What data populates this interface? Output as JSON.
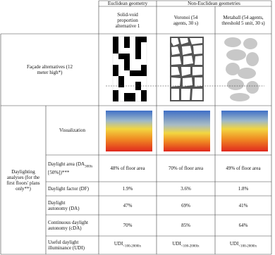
{
  "header": {
    "group_euclidean": "Euclidean geometry",
    "group_non_euclidean": "Non-Euclidean geometries",
    "alternatives": [
      "Solid-void proportion alternative 1",
      "Voronoi (54 agents, 30 s)",
      "Metaball (54 agents, threshold 5 unit, 30 s)"
    ]
  },
  "facade_label": "Façade alternatives (12 meter high*)",
  "section_label": "Daylighting analyses (for the first floors' plans only**)",
  "visualization_label": "Visualization",
  "rows": [
    {
      "label": "Daylight area (DA",
      "label_sub": "300lx",
      "label_tail": " [50%])***",
      "values": [
        "48% of floor area",
        "70% of floor area",
        "49% of floor area"
      ]
    },
    {
      "label": "Daylight factor (DF)",
      "values": [
        "1.9%",
        "3.6%",
        "1.8%"
      ]
    },
    {
      "label": "Daylight autonomy (DA)",
      "values": [
        "47%",
        "69%",
        "41%"
      ]
    },
    {
      "label": "Continuous daylight autonomy (cDA)",
      "values": [
        "70%",
        "85%",
        "64%"
      ]
    },
    {
      "label": "Useful daylight illuminance (UDI)",
      "values": [
        "UDI",
        "UDI",
        "UDI"
      ],
      "value_subs": [
        "<100-2000lx",
        "<100-2000lx",
        "<100-2000lx"
      ]
    }
  ]
}
